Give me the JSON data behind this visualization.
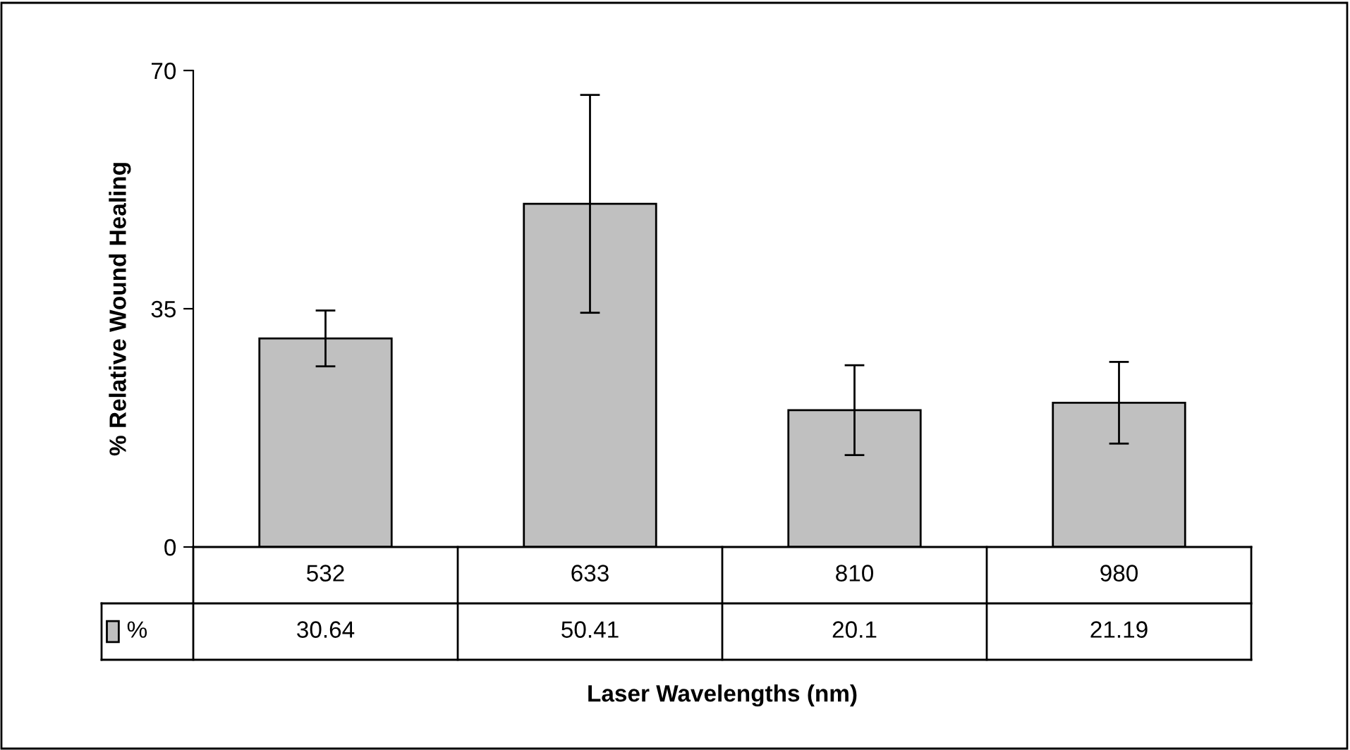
{
  "chart_data": {
    "type": "bar",
    "xlabel": "Laser Wavelengths (nm)",
    "ylabel": "% Relative Wound Healing",
    "categories": [
      "532",
      "633",
      "810",
      "980"
    ],
    "series": [
      {
        "name": "%",
        "color": "#c0c0c0",
        "values": [
          30.64,
          50.41,
          20.1,
          21.19
        ],
        "errors": [
          4.1,
          16,
          6.6,
          6
        ]
      }
    ],
    "ylim": [
      0,
      70
    ],
    "yticks": [
      0,
      35,
      70
    ],
    "grid": false,
    "legend": "bottom left",
    "data_labels": true
  }
}
